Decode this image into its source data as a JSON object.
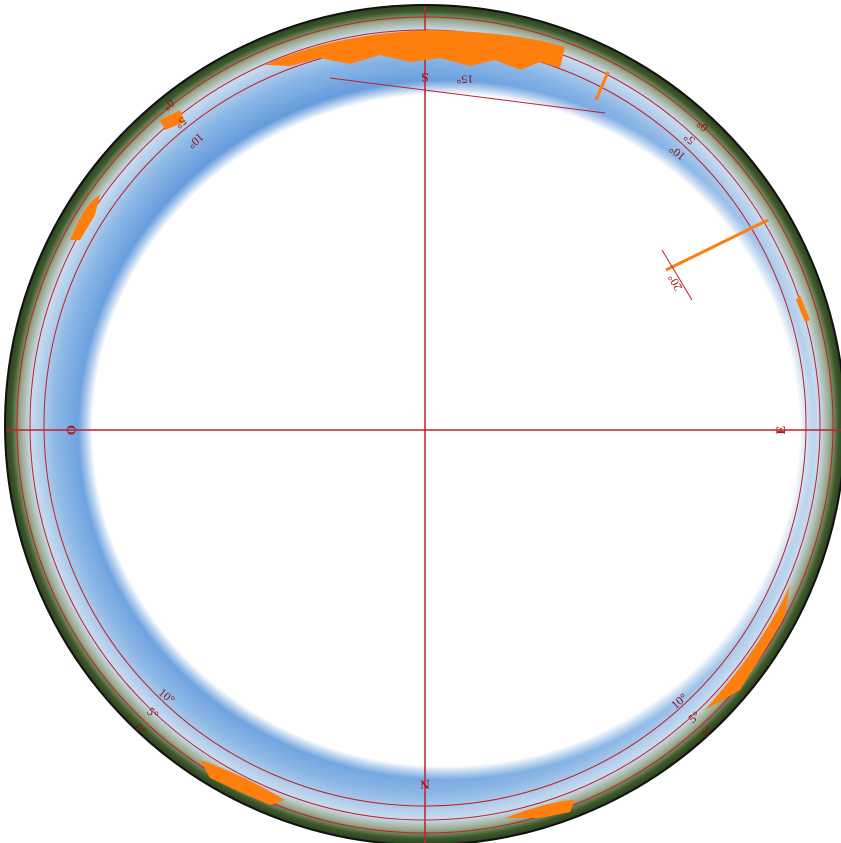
{
  "compass": {
    "top": "S",
    "bottom": "N",
    "left": "O",
    "right": "E"
  },
  "elevation_labels": {
    "upper_left": [
      "0°",
      "5°",
      "10°"
    ],
    "upper_right": [
      "0°",
      "5°",
      "10°"
    ],
    "lower_left": [
      "0°",
      "5°",
      "10°"
    ],
    "lower_right": [
      "0°",
      "5°",
      "10°"
    ],
    "top": [
      "15°"
    ],
    "right": [
      "20°"
    ]
  }
}
